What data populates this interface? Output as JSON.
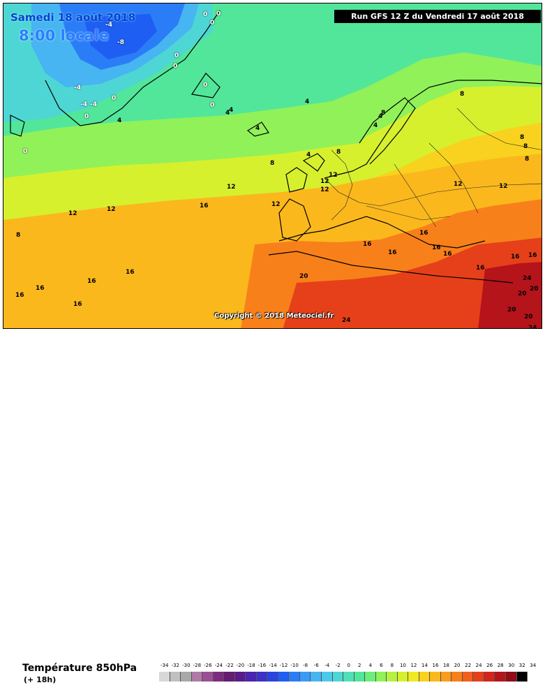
{
  "header": {
    "date_line": "Samedi 18 août 2018",
    "time_line": "8:00 locale",
    "run_line": "Run GFS 12 Z du Vendredi 17 août 2018"
  },
  "copyright": "Copyright © 2018 Meteociel.fr",
  "footer": {
    "variable_title": "Température 850hPa",
    "forecast_offset": "(+ 18h)"
  },
  "legend": {
    "ticks": [
      "-34",
      "-32",
      "-30",
      "-28",
      "-26",
      "-24",
      "-22",
      "-20",
      "-18",
      "-16",
      "-14",
      "-12",
      "-10",
      "-8",
      "-6",
      "-4",
      "-2",
      "0",
      "2",
      "4",
      "6",
      "8",
      "10",
      "12",
      "14",
      "16",
      "18",
      "20",
      "22",
      "24",
      "26",
      "28",
      "30",
      "32",
      "34"
    ],
    "colors": [
      "#d8d8d8",
      "#c0c0c0",
      "#a8a8a8",
      "#b07aa8",
      "#9a4f94",
      "#7d2b80",
      "#661c70",
      "#5a1a8a",
      "#4a23b0",
      "#3b32c8",
      "#2a44e0",
      "#1e5ef2",
      "#2b7df7",
      "#3a9bf6",
      "#46b5f2",
      "#4cc9e8",
      "#4ed6d4",
      "#4fe0b7",
      "#52e69a",
      "#6ded79",
      "#91f159",
      "#b5f240",
      "#d6f02e",
      "#f0ea22",
      "#f8d21e",
      "#fbb81d",
      "#fb9d1b",
      "#f8801a",
      "#f2601a",
      "#e6401a",
      "#d3251b",
      "#b5141b",
      "#8f0c18",
      "#000000"
    ]
  },
  "isotherm_labels": [
    {
      "text": "-4"
    },
    {
      "text": "-8"
    },
    {
      "text": "-4"
    },
    {
      "text": "-4"
    },
    {
      "text": "-4"
    },
    {
      "text": "0"
    },
    {
      "text": "0"
    },
    {
      "text": "0"
    },
    {
      "text": "0"
    },
    {
      "text": "0"
    },
    {
      "text": "0"
    },
    {
      "text": "0"
    },
    {
      "text": "0"
    },
    {
      "text": "0"
    },
    {
      "text": "0"
    },
    {
      "text": "4"
    },
    {
      "text": "4"
    },
    {
      "text": "4"
    },
    {
      "text": "4"
    },
    {
      "text": "4"
    },
    {
      "text": "4"
    },
    {
      "text": "4"
    },
    {
      "text": "4"
    },
    {
      "text": "8"
    },
    {
      "text": "8"
    },
    {
      "text": "8"
    },
    {
      "text": "8"
    },
    {
      "text": "8"
    },
    {
      "text": "8"
    },
    {
      "text": "8"
    },
    {
      "text": "8"
    },
    {
      "text": "12"
    },
    {
      "text": "12"
    },
    {
      "text": "12"
    },
    {
      "text": "12"
    },
    {
      "text": "12"
    },
    {
      "text": "12"
    },
    {
      "text": "12"
    },
    {
      "text": "12"
    },
    {
      "text": "12"
    },
    {
      "text": "16"
    },
    {
      "text": "16"
    },
    {
      "text": "16"
    },
    {
      "text": "16"
    },
    {
      "text": "16"
    },
    {
      "text": "16"
    },
    {
      "text": "16"
    },
    {
      "text": "16"
    },
    {
      "text": "16"
    },
    {
      "text": "16"
    },
    {
      "text": "16"
    },
    {
      "text": "16"
    },
    {
      "text": "16"
    },
    {
      "text": "16"
    },
    {
      "text": "20"
    },
    {
      "text": "20"
    },
    {
      "text": "20"
    },
    {
      "text": "20"
    },
    {
      "text": "20"
    },
    {
      "text": "24"
    },
    {
      "text": "24"
    },
    {
      "text": "24"
    }
  ]
}
